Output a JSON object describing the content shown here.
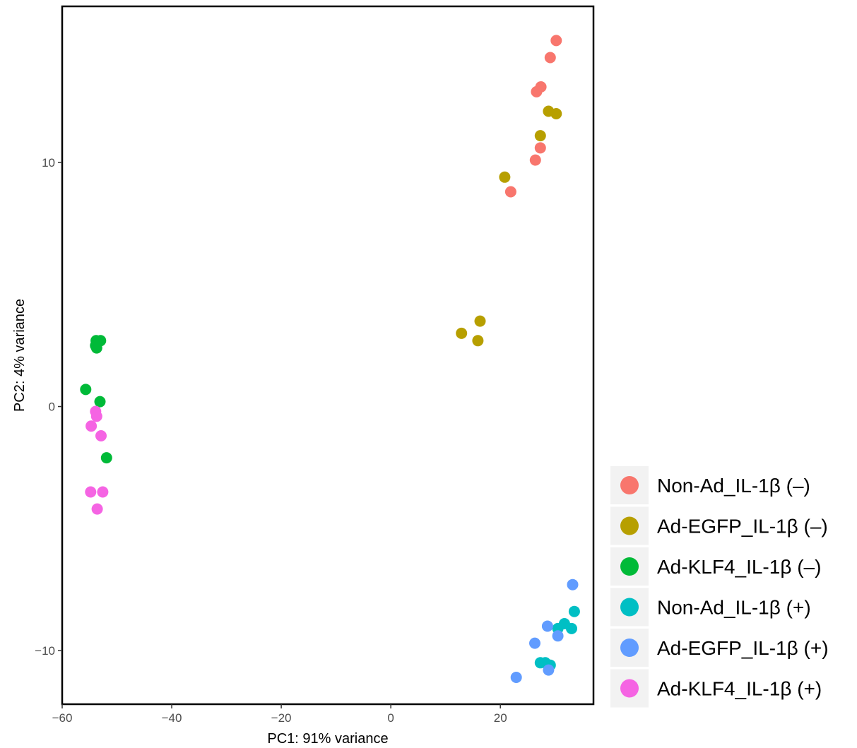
{
  "chart_data": {
    "type": "scatter",
    "title": "",
    "xlabel": "PC1: 91% variance",
    "ylabel": "PC2: 4% variance",
    "xlim": [
      -60.0,
      37.0
    ],
    "ylim": [
      -12.2,
      16.4
    ],
    "x_ticks": [
      -60,
      -40,
      -20,
      0,
      20
    ],
    "x_tick_labels": [
      "−60",
      "−40",
      "−20",
      "0",
      "20"
    ],
    "y_ticks": [
      10,
      0,
      -10
    ],
    "y_tick_labels": [
      "10",
      "0",
      "−10"
    ],
    "grid": false,
    "legend_position": "bottom-right",
    "series": [
      {
        "name": "Non-Ad_IL-1β (–)",
        "color": "#F8766D",
        "points": [
          [
            30.2,
            15.0
          ],
          [
            29.1,
            14.3
          ],
          [
            27.4,
            13.1
          ],
          [
            26.6,
            12.9
          ],
          [
            27.3,
            10.6
          ],
          [
            26.4,
            10.1
          ],
          [
            21.9,
            8.8
          ]
        ]
      },
      {
        "name": "Ad-EGFP_IL-1β (–)",
        "color": "#B79F00",
        "points": [
          [
            28.8,
            12.1
          ],
          [
            30.2,
            12.0
          ],
          [
            27.3,
            11.1
          ],
          [
            20.8,
            9.4
          ],
          [
            16.3,
            3.5
          ],
          [
            12.9,
            3.0
          ],
          [
            15.9,
            2.7
          ]
        ]
      },
      {
        "name": "Ad-KLF4_IL-1β (–)",
        "color": "#00BA38",
        "points": [
          [
            -53.8,
            2.7
          ],
          [
            -53.0,
            2.7
          ],
          [
            -53.9,
            2.5
          ],
          [
            -53.7,
            2.4
          ],
          [
            -55.7,
            0.7
          ],
          [
            -53.1,
            0.2
          ],
          [
            -51.9,
            -2.1
          ]
        ]
      },
      {
        "name": "Non-Ad_IL-1β (+)",
        "color": "#00BFC4",
        "points": [
          [
            33.5,
            -8.4
          ],
          [
            31.7,
            -8.9
          ],
          [
            30.5,
            -9.1
          ],
          [
            33.0,
            -9.1
          ],
          [
            27.3,
            -10.5
          ],
          [
            28.2,
            -10.5
          ],
          [
            29.1,
            -10.6
          ]
        ]
      },
      {
        "name": "Ad-EGFP_IL-1β (+)",
        "color": "#619CFF",
        "points": [
          [
            33.2,
            -7.3
          ],
          [
            28.6,
            -9.0
          ],
          [
            30.5,
            -9.4
          ],
          [
            26.3,
            -9.7
          ],
          [
            28.8,
            -10.8
          ],
          [
            22.9,
            -11.1
          ]
        ]
      },
      {
        "name": "Ad-KLF4_IL-1β (+)",
        "color": "#F564E3",
        "points": [
          [
            -53.9,
            -0.2
          ],
          [
            -53.7,
            -0.4
          ],
          [
            -54.7,
            -0.8
          ],
          [
            -52.9,
            -1.2
          ],
          [
            -54.8,
            -3.5
          ],
          [
            -52.6,
            -3.5
          ],
          [
            -53.6,
            -4.2
          ]
        ]
      }
    ]
  }
}
